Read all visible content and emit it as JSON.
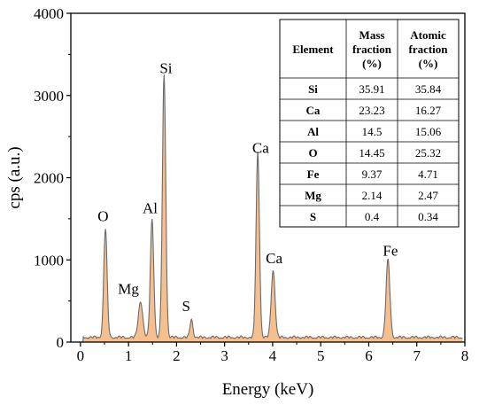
{
  "chart_data": {
    "type": "area",
    "xlabel": "Energy (keV)",
    "ylabel": "cps (a.u.)",
    "xlim": [
      -0.2,
      8
    ],
    "ylim": [
      0,
      4000
    ],
    "xticks": [
      "0",
      "1",
      "2",
      "3",
      "4",
      "5",
      "6",
      "7",
      "8"
    ],
    "yticks": [
      "0",
      "1000",
      "2000",
      "3000",
      "4000"
    ],
    "colors": {
      "fill": "#f5c08e",
      "line": "#6b6b6b"
    },
    "spectrum": {
      "baseline": 60,
      "peaks": [
        {
          "x": 0.52,
          "y": 1320,
          "w": 0.035
        },
        {
          "x": 1.25,
          "y": 440,
          "w": 0.045
        },
        {
          "x": 1.49,
          "y": 1440,
          "w": 0.035
        },
        {
          "x": 1.74,
          "y": 3190,
          "w": 0.035
        },
        {
          "x": 2.31,
          "y": 220,
          "w": 0.03
        },
        {
          "x": 3.69,
          "y": 2250,
          "w": 0.035
        },
        {
          "x": 4.01,
          "y": 820,
          "w": 0.04
        },
        {
          "x": 6.4,
          "y": 940,
          "w": 0.04
        }
      ]
    },
    "annotations": [
      {
        "text": "O",
        "x": 0.47,
        "y": 1470
      },
      {
        "text": "Mg",
        "x": 1.0,
        "y": 590
      },
      {
        "text": "Al",
        "x": 1.45,
        "y": 1570
      },
      {
        "text": "Si",
        "x": 1.78,
        "y": 3270
      },
      {
        "text": "S",
        "x": 2.2,
        "y": 380
      },
      {
        "text": "Ca",
        "x": 3.75,
        "y": 2300
      },
      {
        "text": "Ca",
        "x": 4.03,
        "y": 960
      },
      {
        "text": "Fe",
        "x": 6.45,
        "y": 1050
      }
    ],
    "table": {
      "headers": [
        "Element",
        "Mass\nfraction\n(%)",
        "Atomic\nfraction\n(%)"
      ],
      "rows": [
        [
          "Si",
          "35.91",
          "35.84"
        ],
        [
          "Ca",
          "23.23",
          "16.27"
        ],
        [
          "Al",
          "14.5",
          "15.06"
        ],
        [
          "O",
          "14.45",
          "25.32"
        ],
        [
          "Fe",
          "9.37",
          "4.71"
        ],
        [
          "Mg",
          "2.14",
          "2.47"
        ],
        [
          "S",
          "0.4",
          "0.34"
        ]
      ]
    }
  }
}
